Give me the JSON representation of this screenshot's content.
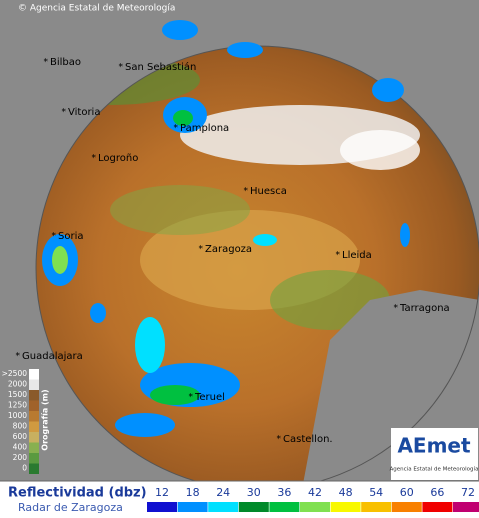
{
  "header": {
    "copyright": "© Agencia Estatal de Meteorología"
  },
  "map": {
    "cities": [
      "Bilbao",
      "San Sebastián",
      "Vitoria",
      "Pamplona",
      "Logroño",
      "Huesca",
      "Zaragoza",
      "Lleida",
      "Tarragona",
      "Soria",
      "Guadalajara",
      "Teruel",
      "Castellon."
    ]
  },
  "orography": {
    "title": "Orografía (m)",
    "levels": [
      ">2500",
      "2000",
      "1500",
      "1250",
      "1000",
      "800",
      "600",
      "400",
      "200",
      "0"
    ]
  },
  "legend": {
    "title": "Reflectividad (dbz)",
    "subtitle": "Radar de Zaragoza",
    "levels": [
      {
        "label": "12",
        "color": "#1010d0"
      },
      {
        "label": "18",
        "color": "#0090ff"
      },
      {
        "label": "24",
        "color": "#00e0ff"
      },
      {
        "label": "30",
        "color": "#008a2a"
      },
      {
        "label": "36",
        "color": "#00c040"
      },
      {
        "label": "42",
        "color": "#80e050"
      },
      {
        "label": "48",
        "color": "#f8f800"
      },
      {
        "label": "54",
        "color": "#f8c000"
      },
      {
        "label": "60",
        "color": "#f88000"
      },
      {
        "label": "66",
        "color": "#f00000"
      },
      {
        "label": "72",
        "color": "#c00070"
      }
    ]
  },
  "logo": {
    "name": "AEmet",
    "subtitle": "Agencia Estatal de Meteorología"
  }
}
